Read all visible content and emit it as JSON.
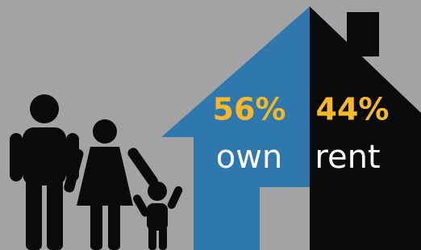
{
  "own": {
    "percent": "56%",
    "label": "own"
  },
  "rent": {
    "percent": "44%",
    "label": "rent"
  }
}
